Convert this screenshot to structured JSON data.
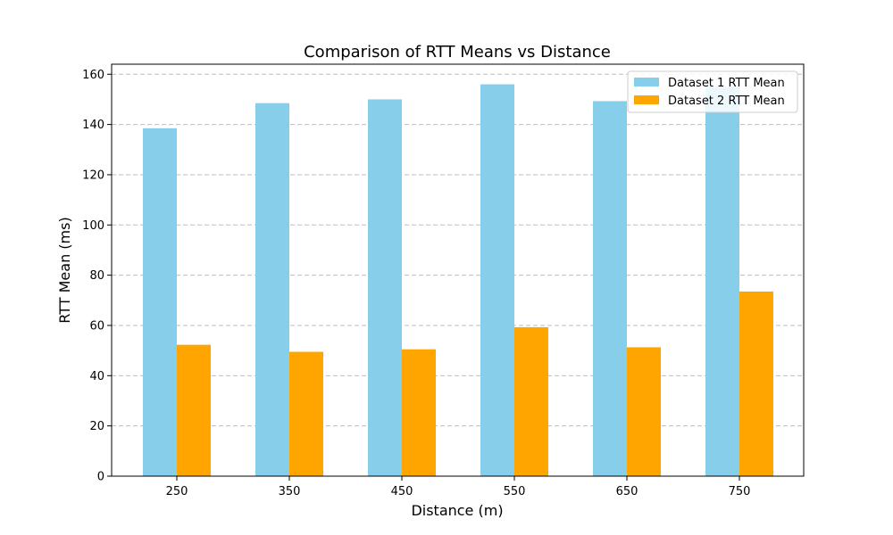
{
  "chart_data": {
    "type": "bar",
    "title": "Comparison of RTT Means vs Distance",
    "xlabel": "Distance (m)",
    "ylabel": "RTT Mean (ms)",
    "categories": [
      "250",
      "350",
      "450",
      "550",
      "650",
      "750"
    ],
    "series": [
      {
        "name": "Dataset 1 RTT Mean",
        "color": "#87ceeb",
        "values": [
          138.5,
          148.5,
          150,
          156,
          149.3,
          155
        ]
      },
      {
        "name": "Dataset 2 RTT Mean",
        "color": "#ffa500",
        "values": [
          52.3,
          49.5,
          50.5,
          59.3,
          51.3,
          73.5
        ]
      }
    ],
    "ylim": [
      0,
      164
    ],
    "yticks": [
      0,
      20,
      40,
      60,
      80,
      100,
      120,
      140,
      160
    ],
    "grid": "y-dashed",
    "legend_position": "top-right"
  }
}
